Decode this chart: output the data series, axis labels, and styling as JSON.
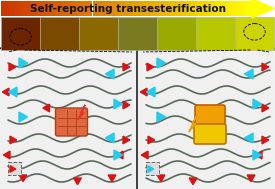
{
  "title": "Self-reporting transesterification",
  "title_fontsize": 7.5,
  "title_fontweight": "bold",
  "title_color": "#111111",
  "bg_color": "#ffffff",
  "photo_colors": [
    "#6b2500",
    "#7a4a00",
    "#8a6a00",
    "#7a7a20",
    "#9aaa00",
    "#b8c800",
    "#ccd400"
  ],
  "polymer_color": "#5a6a5a",
  "arrow_red": "#dd1111",
  "arrow_cyan": "#22ccee",
  "node_left_color": "#e06840",
  "node_left_edge": "#b04010",
  "node_right1_color": "#f0a000",
  "node_right1_edge": "#c06000",
  "node_right2_color": "#f0c800",
  "node_right2_edge": "#c07000",
  "flash_left_color": "#e83030",
  "flash_right_color": "#e8a000",
  "box_face": "#f0f0f0",
  "box_edge": "#222222"
}
